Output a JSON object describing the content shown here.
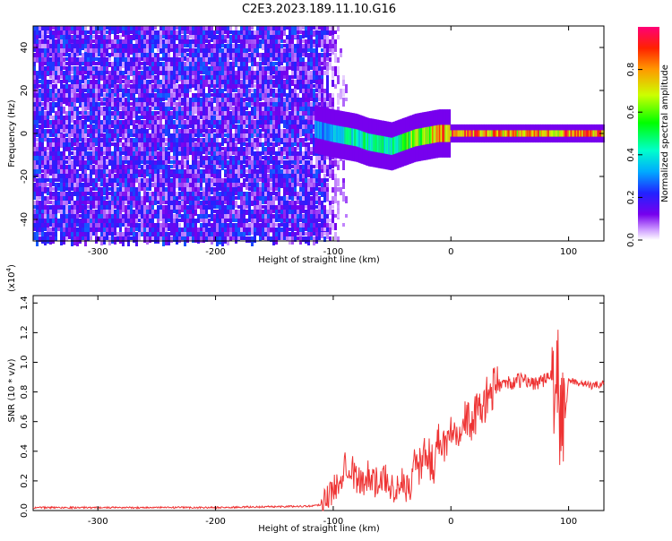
{
  "title": "C2E3.2023.189.11.10.G16",
  "chart_data": [
    {
      "type": "heatmap",
      "xlabel": "Height of straight line (km)",
      "ylabel": "Frequency (Hz)",
      "xlim": [
        -355,
        130
      ],
      "ylim": [
        -50,
        50
      ],
      "xticks": [
        -300,
        -200,
        -100,
        0,
        100
      ],
      "yticks": [
        -40,
        -20,
        0,
        20,
        40
      ],
      "noise_region": {
        "x": [
          -355,
          -90
        ],
        "amplitude": 0.3
      },
      "signal_ridge": {
        "x": [
          -115,
          -100,
          -90,
          -80,
          -70,
          -60,
          -50,
          -40,
          -30,
          -20,
          -10,
          0,
          10,
          50,
          90,
          130
        ],
        "freq": [
          2,
          0,
          -1,
          -2,
          -4,
          -5,
          -6,
          -4,
          -2,
          -1,
          0,
          0,
          0,
          0,
          0,
          0
        ],
        "amplitude": [
          0.35,
          0.4,
          0.45,
          0.5,
          0.5,
          0.55,
          0.5,
          0.6,
          0.7,
          0.75,
          0.85,
          0.9,
          0.95,
          0.85,
          0.9,
          0.95
        ]
      },
      "colorbar": {
        "label": "Normalized spectral amplitude",
        "ticks": [
          "0.0",
          "0.2",
          "0.4",
          "0.6",
          "0.8"
        ],
        "range": [
          0,
          1
        ]
      }
    },
    {
      "type": "line",
      "xlabel": "Height of straight line (km)",
      "ylabel": "SNR (10 * v/v)",
      "scale_label": "(x10",
      "scale_exp": "4",
      "scale_close": ")",
      "xlim": [
        -355,
        130
      ],
      "ylim": [
        0,
        1.45
      ],
      "xticks": [
        -300,
        -200,
        -100,
        0,
        100
      ],
      "yticks": [
        "0.0",
        "0.2",
        "0.4",
        "0.6",
        "0.8",
        "1.0",
        "1.2",
        "1.4"
      ],
      "series": [
        {
          "color": "#ee3333",
          "x": [
            -355,
            -200,
            -120,
            -110,
            -100,
            -95,
            -90,
            -80,
            -75,
            -70,
            -65,
            -60,
            -55,
            -50,
            -45,
            -40,
            -35,
            -30,
            -25,
            -20,
            -15,
            -10,
            -5,
            0,
            10,
            20,
            30,
            40,
            50,
            60,
            70,
            80,
            85,
            88,
            90,
            92,
            94,
            96,
            100,
            110,
            120,
            130
          ],
          "y": [
            0.02,
            0.02,
            0.03,
            0.04,
            0.08,
            0.15,
            0.3,
            0.18,
            0.12,
            0.22,
            0.15,
            0.12,
            0.18,
            0.12,
            0.1,
            0.15,
            0.08,
            0.35,
            0.28,
            0.4,
            0.3,
            0.5,
            0.45,
            0.55,
            0.6,
            0.62,
            0.75,
            0.85,
            0.86,
            0.88,
            0.86,
            0.88,
            0.9,
            0.92,
            0.95,
            0.7,
            0.45,
            0.55,
            0.88,
            0.86,
            0.84,
            0.86
          ]
        }
      ]
    }
  ]
}
